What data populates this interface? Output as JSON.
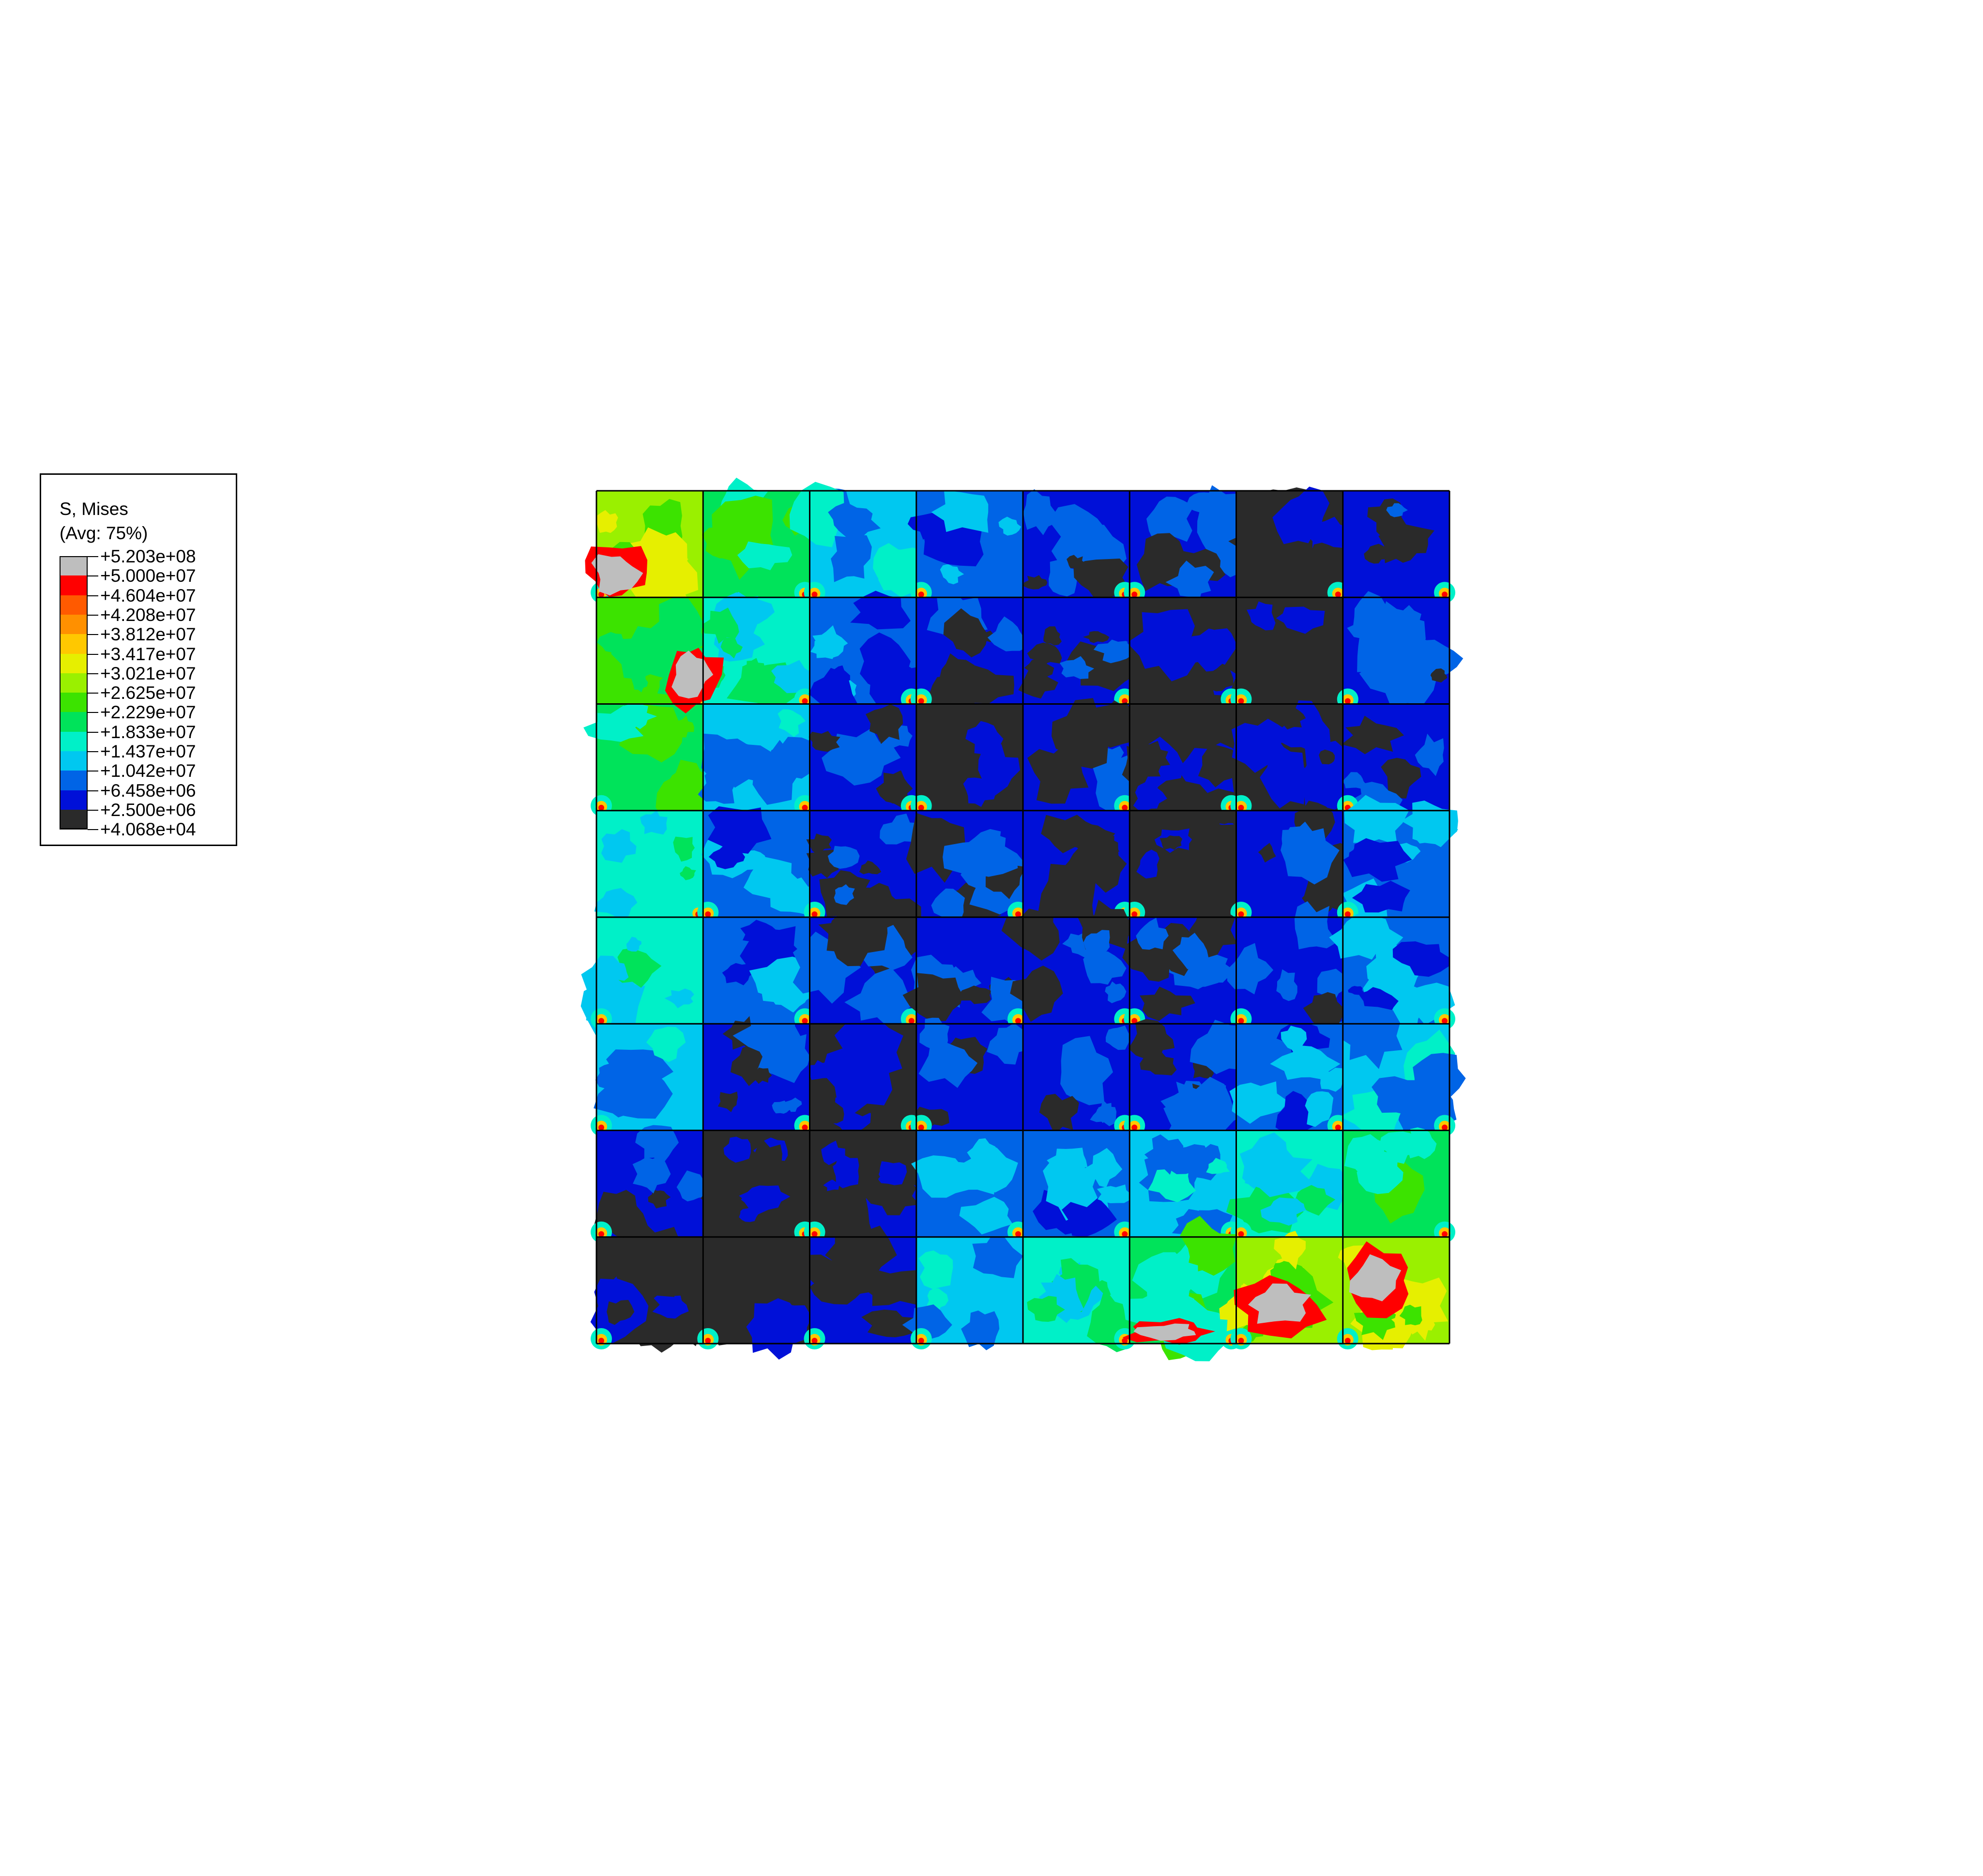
{
  "legend": {
    "title_line1": "S, Mises",
    "title_line2": "(Avg: 75%)",
    "levels": [
      {
        "label": "+5.203e+08",
        "color": "#bebebe"
      },
      {
        "label": "+5.000e+07",
        "color": "#ff0000"
      },
      {
        "label": "+4.604e+07",
        "color": "#ff5a00"
      },
      {
        "label": "+4.208e+07",
        "color": "#ff9000"
      },
      {
        "label": "+3.812e+07",
        "color": "#ffc800"
      },
      {
        "label": "+3.417e+07",
        "color": "#e6ef00"
      },
      {
        "label": "+3.021e+07",
        "color": "#9af000"
      },
      {
        "label": "+2.625e+07",
        "color": "#3ce300"
      },
      {
        "label": "+2.229e+07",
        "color": "#00e35a"
      },
      {
        "label": "+1.833e+07",
        "color": "#00f0c8"
      },
      {
        "label": "+1.437e+07",
        "color": "#00c8f0"
      },
      {
        "label": "+1.042e+07",
        "color": "#0064e6"
      },
      {
        "label": "+6.458e+06",
        "color": "#0010d8"
      },
      {
        "label": "+2.500e+06",
        "color": "#2a2a2a"
      },
      {
        "label": "+4.068e+04",
        "color": null
      }
    ]
  },
  "contour_plot": {
    "grid_rows": 8,
    "grid_cols": 8,
    "cell_levels": [
      [
        6,
        8,
        10,
        11,
        12,
        12,
        13,
        12
      ],
      [
        7,
        9,
        11,
        12,
        12,
        13,
        13,
        12
      ],
      [
        8,
        10,
        12,
        13,
        12,
        13,
        13,
        12
      ],
      [
        9,
        11,
        12,
        12,
        12,
        13,
        12,
        11
      ],
      [
        9,
        11,
        12,
        12,
        12,
        12,
        12,
        11
      ],
      [
        10,
        12,
        13,
        12,
        12,
        12,
        11,
        10
      ],
      [
        12,
        13,
        13,
        11,
        11,
        10,
        9,
        8
      ],
      [
        13,
        13,
        12,
        10,
        9,
        8,
        6,
        6
      ]
    ]
  }
}
